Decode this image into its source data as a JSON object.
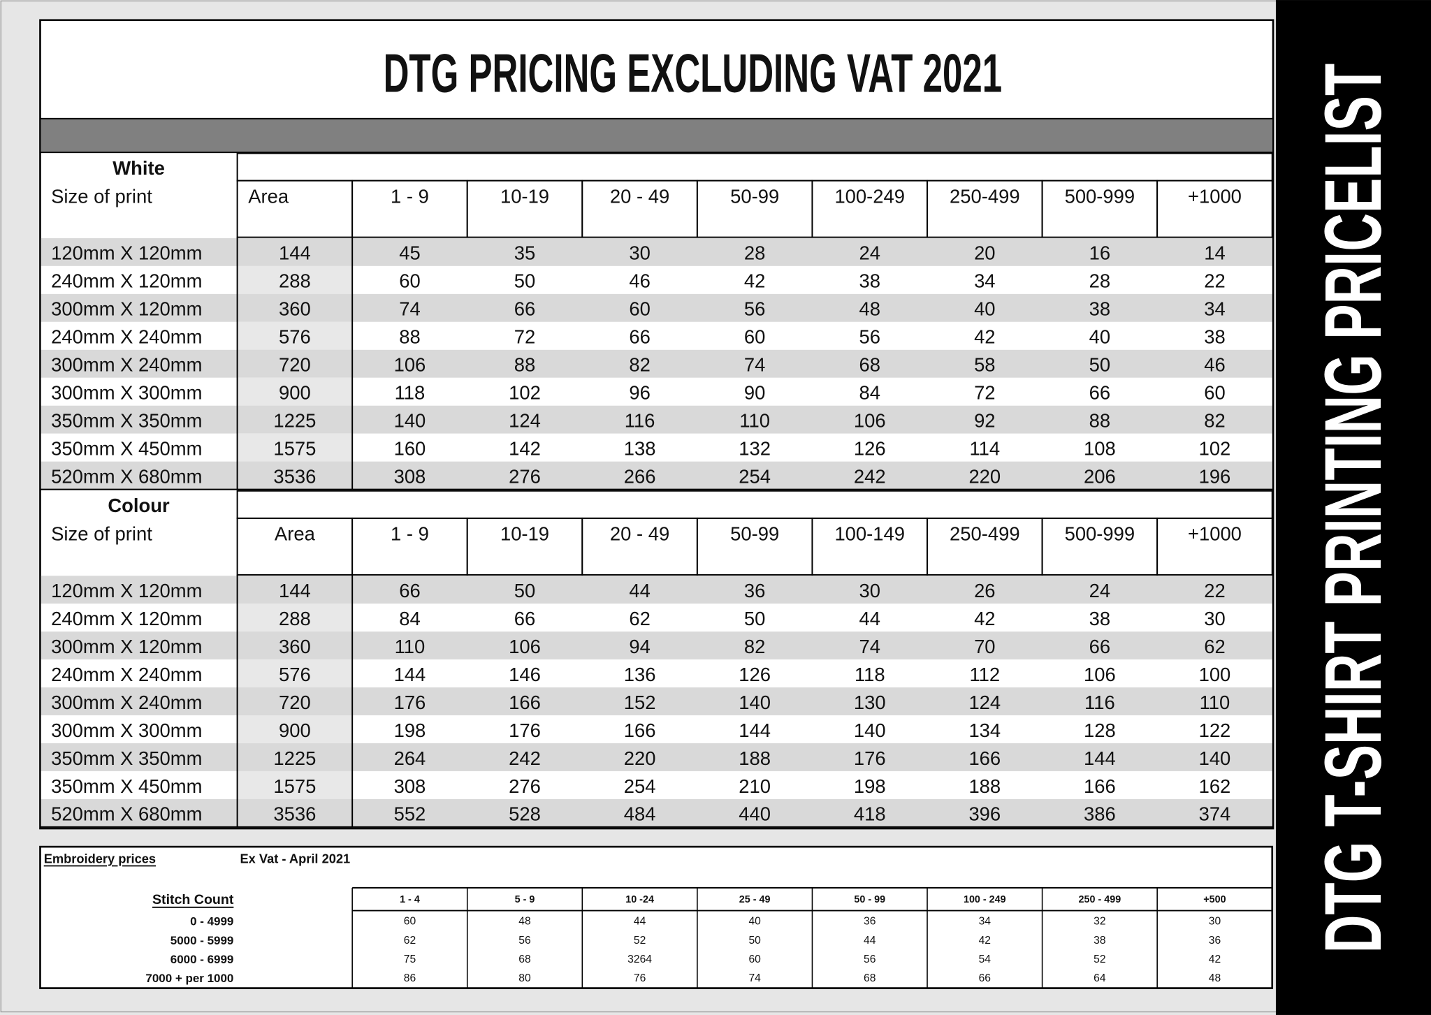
{
  "title": "DTG PRICING EXCLUDING VAT 2021",
  "side_title": "DTG T-SHIRT PRINTING PRICELIST",
  "sections": [
    {
      "name": "White",
      "size_label": "Size of print",
      "header": [
        "Area",
        "1 - 9",
        "10-19",
        "20 - 49",
        "50-99",
        "100-249",
        "250-499",
        "500-999",
        "+1000"
      ],
      "rows": [
        [
          "120mm X 120mm",
          144,
          45,
          35,
          30,
          28,
          24,
          20,
          16,
          14
        ],
        [
          "240mm X 120mm",
          288,
          60,
          50,
          46,
          42,
          38,
          34,
          28,
          22
        ],
        [
          "300mm X 120mm",
          360,
          74,
          66,
          60,
          56,
          48,
          40,
          38,
          34
        ],
        [
          "240mm X 240mm",
          576,
          88,
          72,
          66,
          60,
          56,
          42,
          40,
          38
        ],
        [
          "300mm X 240mm",
          720,
          106,
          88,
          82,
          74,
          68,
          58,
          50,
          46
        ],
        [
          "300mm X 300mm",
          900,
          118,
          102,
          96,
          90,
          84,
          72,
          66,
          60
        ],
        [
          "350mm X 350mm",
          1225,
          140,
          124,
          116,
          110,
          106,
          92,
          88,
          82
        ],
        [
          "350mm X 450mm",
          1575,
          160,
          142,
          138,
          132,
          126,
          114,
          108,
          102
        ],
        [
          "520mm X 680mm",
          3536,
          308,
          276,
          266,
          254,
          242,
          220,
          206,
          196
        ]
      ]
    },
    {
      "name": "Colour",
      "size_label": "Size of print",
      "header": [
        "Area",
        "1 - 9",
        "10-19",
        "20 - 49",
        "50-99",
        "100-149",
        "250-499",
        "500-999",
        "+1000"
      ],
      "rows": [
        [
          "120mm X 120mm",
          144,
          66,
          50,
          44,
          36,
          30,
          26,
          24,
          22
        ],
        [
          "240mm X 120mm",
          288,
          84,
          66,
          62,
          50,
          44,
          42,
          38,
          30
        ],
        [
          "300mm X 120mm",
          360,
          110,
          106,
          94,
          82,
          74,
          70,
          66,
          62
        ],
        [
          "240mm X 240mm",
          576,
          144,
          146,
          136,
          126,
          118,
          112,
          106,
          100
        ],
        [
          "300mm X 240mm",
          720,
          176,
          166,
          152,
          140,
          130,
          124,
          116,
          110
        ],
        [
          "300mm X 300mm",
          900,
          198,
          176,
          166,
          144,
          140,
          134,
          128,
          122
        ],
        [
          "350mm X 350mm",
          1225,
          264,
          242,
          220,
          188,
          176,
          166,
          144,
          140
        ],
        [
          "350mm X 450mm",
          1575,
          308,
          276,
          254,
          210,
          198,
          188,
          166,
          162
        ],
        [
          "520mm X 680mm",
          3536,
          552,
          528,
          484,
          440,
          418,
          396,
          386,
          374
        ]
      ]
    }
  ],
  "embroidery": {
    "title": "Embroidery prices",
    "note": "Ex Vat - April 2021",
    "stitch_label": "Stitch Count",
    "header": [
      "1 - 4",
      "5 - 9",
      "10 -24",
      "25 - 49",
      "50 - 99",
      "100 - 249",
      "250 - 499",
      "+500"
    ],
    "rows": [
      [
        "0 - 4999",
        60,
        48,
        44,
        40,
        36,
        34,
        32,
        30
      ],
      [
        "5000 - 5999",
        62,
        56,
        52,
        50,
        44,
        42,
        38,
        36
      ],
      [
        "6000 - 6999",
        75,
        68,
        3264,
        60,
        56,
        54,
        52,
        42
      ],
      [
        "7000 + per 1000",
        86,
        80,
        76,
        74,
        68,
        66,
        64,
        48
      ]
    ]
  }
}
